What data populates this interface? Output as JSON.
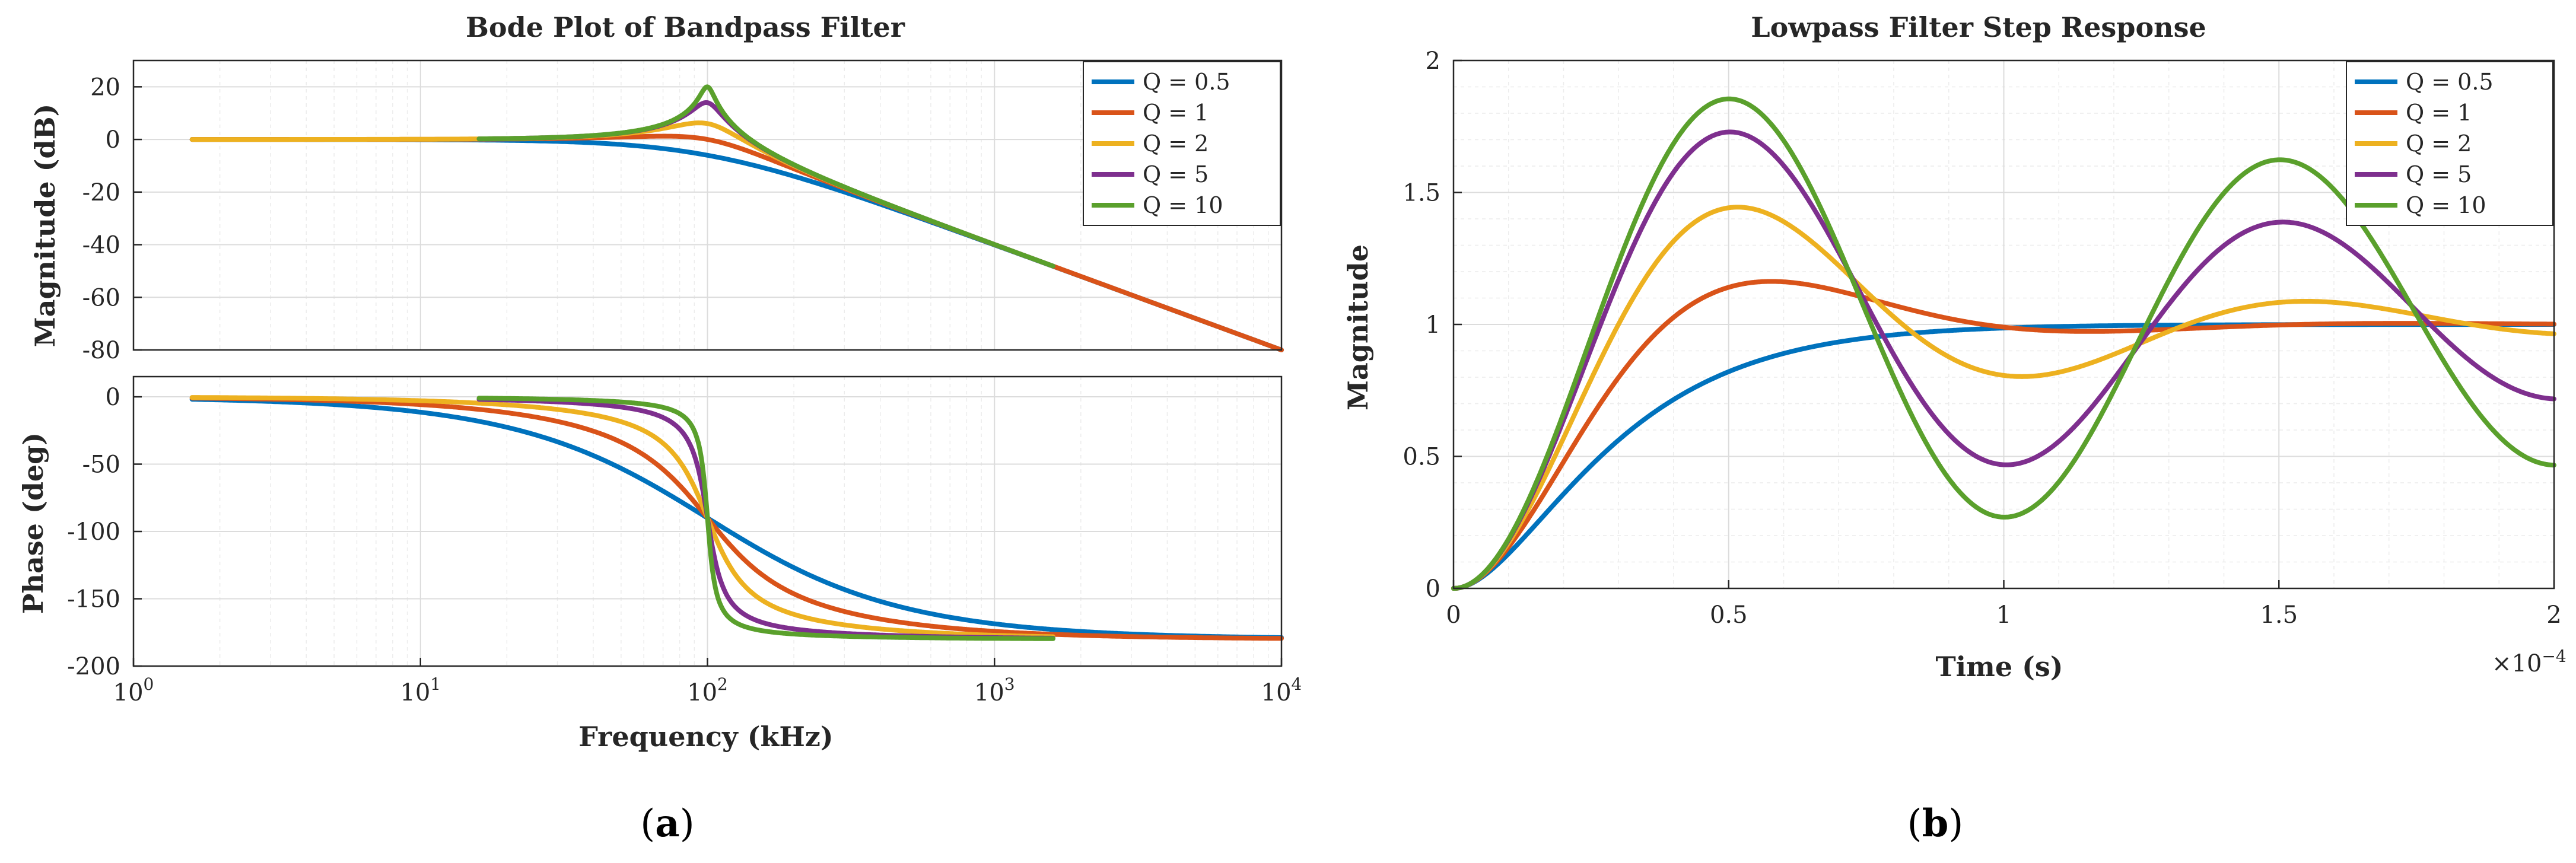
{
  "chart_data": [
    {
      "id": "bode-magnitude",
      "type": "line",
      "title": "Bode Plot of Bandpass Filter",
      "xlabel": "",
      "ylabel": "Magnitude (dB)",
      "xscale": "log",
      "xlim": [
        1,
        10000
      ],
      "ylim": [
        -80,
        30
      ],
      "yticks": [
        20,
        0,
        -20,
        -40,
        -60,
        -80
      ],
      "ytick_labels": [
        "20",
        "0",
        "-20",
        "-40",
        "-60",
        "-80"
      ],
      "grid": true,
      "legend_position": "top-right",
      "series": [
        {
          "name": "Q = 0.5",
          "color": "#0072BD",
          "Q": 0.5,
          "f_range": [
            1.6,
            10000
          ]
        },
        {
          "name": "Q = 1",
          "color": "#D95319",
          "Q": 1,
          "f_range": [
            1.6,
            10000
          ]
        },
        {
          "name": "Q = 2",
          "color": "#EDB120",
          "Q": 2,
          "f_range": [
            1.6,
            1600
          ]
        },
        {
          "name": "Q = 5",
          "color": "#7E2F8E",
          "Q": 5,
          "f_range": [
            16,
            1600
          ]
        },
        {
          "name": "Q = 10",
          "color": "#5AA02C",
          "Q": 10,
          "f_range": [
            16,
            1600
          ]
        }
      ],
      "center_frequency": 100
    },
    {
      "id": "bode-phase",
      "type": "line",
      "title": "",
      "xlabel": "Frequency (kHz)",
      "ylabel": "Phase (deg)",
      "xscale": "log",
      "xlim": [
        1,
        10000
      ],
      "xticks": [
        1,
        10,
        100,
        1000,
        10000
      ],
      "xtick_base": "10",
      "xtick_exponents": [
        "0",
        "1",
        "2",
        "3",
        "4"
      ],
      "ylim": [
        -200,
        15
      ],
      "yticks": [
        0,
        -50,
        -100,
        -150,
        -200
      ],
      "ytick_labels": [
        "0",
        "-50",
        "-100",
        "-150",
        "-200"
      ],
      "grid": true,
      "series": [
        {
          "name": "Q = 0.5",
          "color": "#0072BD",
          "Q": 0.5,
          "f_range": [
            1.6,
            10000
          ]
        },
        {
          "name": "Q = 1",
          "color": "#D95319",
          "Q": 1,
          "f_range": [
            1.6,
            10000
          ]
        },
        {
          "name": "Q = 2",
          "color": "#EDB120",
          "Q": 2,
          "f_range": [
            1.6,
            1600
          ]
        },
        {
          "name": "Q = 5",
          "color": "#7E2F8E",
          "Q": 5,
          "f_range": [
            16,
            1600
          ]
        },
        {
          "name": "Q = 10",
          "color": "#5AA02C",
          "Q": 10,
          "f_range": [
            16,
            1600
          ]
        }
      ],
      "center_frequency": 100
    },
    {
      "id": "step-response",
      "type": "line",
      "title": "Lowpass Filter Step Response",
      "xlabel": "Time (s)",
      "ylabel": "Magnitude",
      "xlim": [
        0,
        0.0002
      ],
      "xticks": [
        0,
        5e-05,
        0.0001,
        0.00015,
        0.0002
      ],
      "xtick_labels": [
        "0",
        "0.5",
        "1",
        "1.5",
        "2"
      ],
      "x_multiplier_base": "×10",
      "x_multiplier_exp": "−4",
      "ylim": [
        0,
        2
      ],
      "yticks": [
        0,
        0.5,
        1,
        1.5,
        2
      ],
      "ytick_labels": [
        "0",
        "0.5",
        "1",
        "1.5",
        "2"
      ],
      "grid": true,
      "legend_position": "top-right",
      "natural_frequency_hz": 10000,
      "series": [
        {
          "name": "Q = 0.5",
          "color": "#0072BD",
          "Q": 0.5
        },
        {
          "name": "Q = 1",
          "color": "#D95319",
          "Q": 1
        },
        {
          "name": "Q = 2",
          "color": "#EDB120",
          "Q": 2
        },
        {
          "name": "Q = 5",
          "color": "#7E2F8E",
          "Q": 5
        },
        {
          "name": "Q = 10",
          "color": "#5AA02C",
          "Q": 10
        }
      ]
    }
  ],
  "panels": {
    "a_label": "a",
    "b_label": "b"
  }
}
